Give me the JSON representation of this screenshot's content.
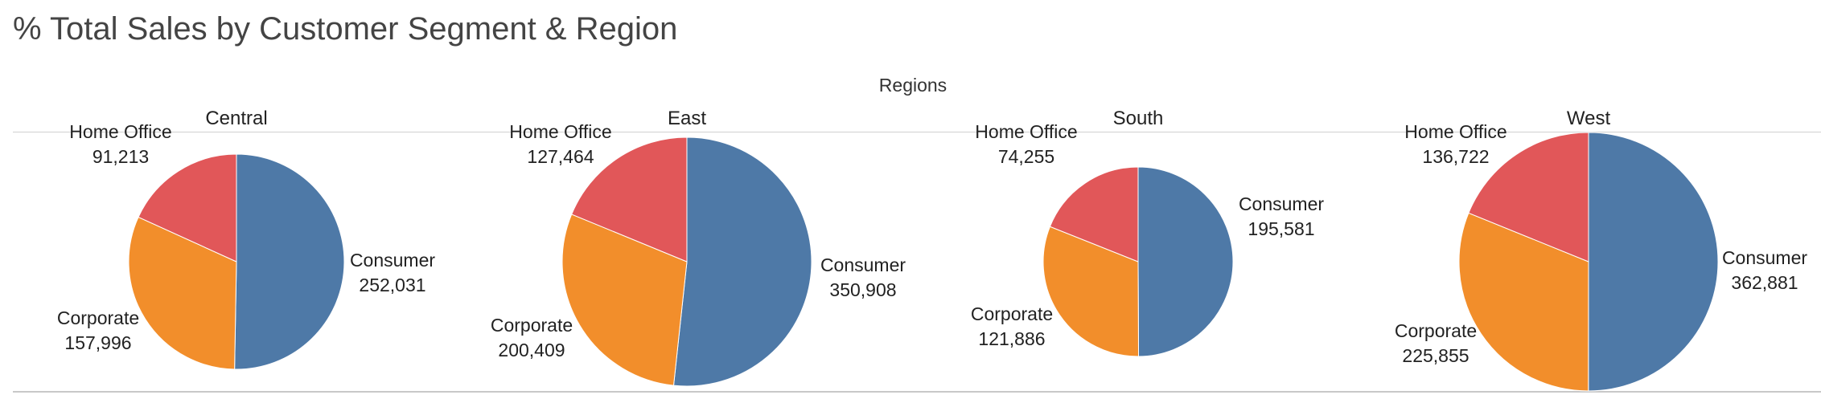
{
  "title": "% Total Sales by Customer Segment & Region",
  "chart_data": {
    "type": "pie",
    "title": "% Total Sales by Customer Segment & Region",
    "facet_label": "Regions",
    "segments": [
      "Consumer",
      "Corporate",
      "Home Office"
    ],
    "colors": {
      "Consumer": "#4e79a7",
      "Corporate": "#f28e2b",
      "Home Office": "#e15759"
    },
    "panels": [
      {
        "region": "Central",
        "slices": [
          {
            "segment": "Consumer",
            "value": 252031,
            "label": "252,031"
          },
          {
            "segment": "Corporate",
            "value": 157996,
            "label": "157,996"
          },
          {
            "segment": "Home Office",
            "value": 91213,
            "label": "91,213"
          }
        ]
      },
      {
        "region": "East",
        "slices": [
          {
            "segment": "Consumer",
            "value": 350908,
            "label": "350,908"
          },
          {
            "segment": "Corporate",
            "value": 200409,
            "label": "200,409"
          },
          {
            "segment": "Home Office",
            "value": 127464,
            "label": "127,464"
          }
        ]
      },
      {
        "region": "South",
        "slices": [
          {
            "segment": "Consumer",
            "value": 195581,
            "label": "195,581"
          },
          {
            "segment": "Corporate",
            "value": 121886,
            "label": "121,886"
          },
          {
            "segment": "Home Office",
            "value": 74255,
            "label": "74,255"
          }
        ]
      },
      {
        "region": "West",
        "slices": [
          {
            "segment": "Consumer",
            "value": 362881,
            "label": "362,881"
          },
          {
            "segment": "Corporate",
            "value": 225855,
            "label": "225,855"
          },
          {
            "segment": "Home Office",
            "value": 136722,
            "label": "136,722"
          }
        ]
      }
    ]
  }
}
